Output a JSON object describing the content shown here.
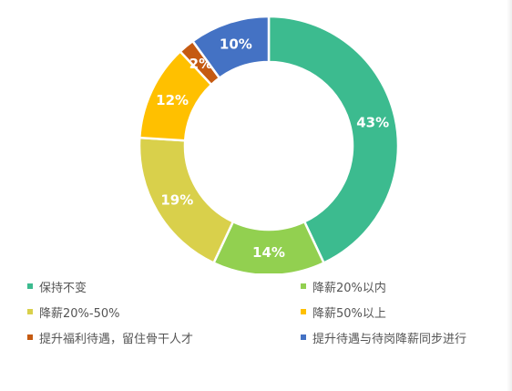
{
  "chart_data": {
    "type": "pie",
    "donut": true,
    "categories": [
      "保持不变",
      "降薪20%以内",
      "降薪20%-50%",
      "降薪50%以上",
      "提升福利待遇，留住骨干人才",
      "提升待遇与待岗降薪同步进行"
    ],
    "values": [
      43,
      14,
      19,
      12,
      2,
      10
    ],
    "labels": [
      "43%",
      "14%",
      "19%",
      "12%",
      "2%",
      "10%"
    ],
    "colors": [
      "#3cbb8f",
      "#92d050",
      "#d9d04b",
      "#ffc000",
      "#c55a11",
      "#4472c4"
    ],
    "legend_position": "bottom"
  }
}
